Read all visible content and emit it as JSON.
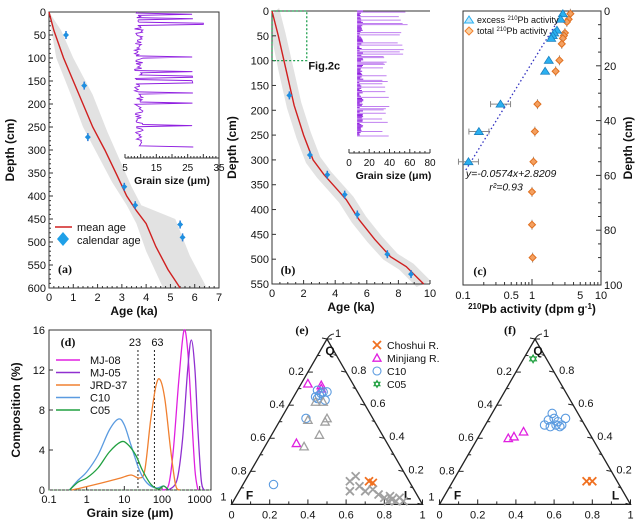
{
  "chart_data": [
    {
      "panel": "a",
      "type": "scatter",
      "panel_label": "(a)",
      "xlabel": "Age (ka)",
      "ylabel": "Depth (cm)",
      "xlim": [
        0,
        7
      ],
      "ylim": [
        600,
        0
      ],
      "xticks": [
        "0",
        "1",
        "2",
        "3",
        "4",
        "5",
        "6",
        "7"
      ],
      "yticks": [
        "0",
        "50",
        "100",
        "150",
        "200",
        "250",
        "300",
        "350",
        "400",
        "450",
        "500",
        "550",
        "600"
      ],
      "calendar_age": [
        [
          0.7,
          50
        ],
        [
          1.45,
          160
        ],
        [
          1.6,
          272
        ],
        [
          3.1,
          380
        ],
        [
          3.55,
          420
        ],
        [
          5.4,
          462
        ],
        [
          5.5,
          490
        ]
      ],
      "mean_age": [
        [
          0,
          0
        ],
        [
          0.2,
          40
        ],
        [
          0.6,
          100
        ],
        [
          1.2,
          175
        ],
        [
          1.8,
          250
        ],
        [
          2.3,
          300
        ],
        [
          2.8,
          355
        ],
        [
          3.2,
          400
        ],
        [
          3.6,
          432
        ],
        [
          4.0,
          460
        ],
        [
          4.4,
          510
        ],
        [
          4.9,
          560
        ],
        [
          5.4,
          600
        ]
      ],
      "envelope_upper": [
        [
          0,
          0
        ],
        [
          0.5,
          40
        ],
        [
          1.0,
          100
        ],
        [
          1.8,
          180
        ],
        [
          2.4,
          260
        ],
        [
          2.9,
          320
        ],
        [
          3.4,
          380
        ],
        [
          3.8,
          420
        ],
        [
          5.2,
          450
        ],
        [
          5.8,
          530
        ],
        [
          6.5,
          600
        ]
      ],
      "envelope_lower": [
        [
          0,
          0
        ],
        [
          0.1,
          40
        ],
        [
          0.3,
          100
        ],
        [
          0.9,
          180
        ],
        [
          1.4,
          250
        ],
        [
          2.0,
          310
        ],
        [
          2.6,
          370
        ],
        [
          3.2,
          420
        ],
        [
          3.6,
          460
        ],
        [
          4.0,
          520
        ],
        [
          4.7,
          600
        ]
      ],
      "legend": [
        "mean age",
        "calendar age"
      ],
      "inset": {
        "xlabel": "Grain size (μm)",
        "xticks": [
          "5",
          "15",
          "25",
          "35"
        ],
        "xlim": [
          5,
          35
        ],
        "depth_range": [
          0,
          290
        ]
      }
    },
    {
      "panel": "b",
      "type": "scatter",
      "panel_label": "(b)",
      "xlabel": "Age (ka)",
      "ylabel": "Depth (cm)",
      "xlim": [
        0,
        10
      ],
      "ylim": [
        550,
        0
      ],
      "xticks": [
        "0",
        "2",
        "4",
        "6",
        "8",
        "10"
      ],
      "yticks": [
        "0",
        "50",
        "100",
        "150",
        "200",
        "250",
        "300",
        "350",
        "400",
        "450",
        "500",
        "550"
      ],
      "calendar_age": [
        [
          1.1,
          170
        ],
        [
          2.4,
          290
        ],
        [
          3.5,
          330
        ],
        [
          4.6,
          370
        ],
        [
          5.4,
          410
        ],
        [
          7.3,
          490
        ],
        [
          8.8,
          530
        ]
      ],
      "mean_age": [
        [
          0,
          0
        ],
        [
          0.4,
          50
        ],
        [
          0.9,
          120
        ],
        [
          1.4,
          190
        ],
        [
          2.0,
          250
        ],
        [
          2.6,
          300
        ],
        [
          3.3,
          330
        ],
        [
          4.0,
          355
        ],
        [
          4.7,
          380
        ],
        [
          5.5,
          420
        ],
        [
          6.5,
          460
        ],
        [
          7.5,
          495
        ],
        [
          8.5,
          515
        ],
        [
          9.6,
          550
        ]
      ],
      "annotation": "Fig.2c",
      "annotation_box": {
        "age": [
          0,
          2.2
        ],
        "depth": [
          0,
          100
        ]
      },
      "inset": {
        "xlabel": "Grain size (μm)",
        "xticks": [
          "0",
          "20",
          "40",
          "60",
          "80"
        ],
        "xlim": [
          0,
          80
        ],
        "depth_range": [
          0,
          250
        ]
      }
    },
    {
      "panel": "c",
      "type": "scatter",
      "panel_label": "(c)",
      "xlabel": "210Pb activity (dpm g-1)",
      "ylabel": "Depth (cm)",
      "xscale": "log",
      "xlim": [
        0.1,
        10
      ],
      "ylim": [
        100,
        0
      ],
      "xticks": [
        "0.1",
        "0.5",
        "1",
        "5",
        "10"
      ],
      "yticks": [
        "0",
        "20",
        "40",
        "60",
        "80",
        "100"
      ],
      "series": [
        {
          "name": "excess 210Pb activity",
          "points": [
            [
              2.8,
              1
            ],
            [
              2.6,
              3
            ],
            [
              2.3,
              7
            ],
            [
              2.1,
              8
            ],
            [
              2.0,
              9
            ],
            [
              1.9,
              10
            ],
            [
              1.75,
              18
            ],
            [
              1.55,
              22
            ],
            [
              0.35,
              34
            ],
            [
              0.17,
              44
            ],
            [
              0.12,
              55
            ]
          ]
        },
        {
          "name": "total 210Pb activity",
          "points": [
            [
              3.6,
              1
            ],
            [
              3.4,
              3
            ],
            [
              3.2,
              4
            ],
            [
              3.0,
              8
            ],
            [
              2.9,
              9
            ],
            [
              2.8,
              10
            ],
            [
              2.7,
              12
            ],
            [
              2.5,
              18
            ],
            [
              2.2,
              22
            ],
            [
              1.2,
              34
            ],
            [
              1.1,
              44
            ],
            [
              1.05,
              55
            ],
            [
              1.0,
              66
            ],
            [
              1.0,
              78
            ],
            [
              1.02,
              90
            ]
          ]
        }
      ],
      "fit_equation": "y=-0.0574x+2.8209",
      "r2": "r²=0.93",
      "legend": [
        "excess 210Pb activity",
        "total 210Pb activity"
      ]
    },
    {
      "panel": "d",
      "type": "line",
      "panel_label": "(d)",
      "xlabel": "Grain size (μm)",
      "ylabel": "Composition (%)",
      "xscale": "log",
      "xlim": [
        0.1,
        2000
      ],
      "ylim": [
        0,
        16
      ],
      "xticks": [
        "0.1",
        "1",
        "10",
        "100",
        "1000"
      ],
      "yticks": [
        "0",
        "4",
        "8",
        "12",
        "16"
      ],
      "reference_lines": [
        {
          "x": 23,
          "label": "23"
        },
        {
          "x": 63,
          "label": "63"
        }
      ],
      "series": [
        {
          "name": "MJ-08",
          "color": "#e020e0",
          "points": [
            [
              100,
              0
            ],
            [
              150,
              0.5
            ],
            [
              200,
              4
            ],
            [
              280,
              11
            ],
            [
              380,
              15.9
            ],
            [
              480,
              14
            ],
            [
              600,
              8
            ],
            [
              750,
              2
            ],
            [
              900,
              0
            ]
          ]
        },
        {
          "name": "MJ-05",
          "color": "#9030d0",
          "points": [
            [
              150,
              0
            ],
            [
              250,
              1
            ],
            [
              350,
              5
            ],
            [
              480,
              12
            ],
            [
              600,
              15
            ],
            [
              750,
              12
            ],
            [
              900,
              6
            ],
            [
              1100,
              1
            ],
            [
              1300,
              0
            ]
          ]
        },
        {
          "name": "JRD-37",
          "color": "#f08030",
          "points": [
            [
              0.4,
              0
            ],
            [
              0.7,
              0.2
            ],
            [
              1.5,
              0.5
            ],
            [
              4,
              0.9
            ],
            [
              8,
              1.2
            ],
            [
              15,
              1.5
            ],
            [
              25,
              1.2
            ],
            [
              35,
              2
            ],
            [
              50,
              7
            ],
            [
              70,
              10.5
            ],
            [
              90,
              11
            ],
            [
              120,
              9
            ],
            [
              170,
              4
            ],
            [
              230,
              0.5
            ],
            [
              300,
              0
            ]
          ]
        },
        {
          "name": "C10",
          "color": "#5b9be0",
          "points": [
            [
              0.35,
              0
            ],
            [
              0.6,
              1
            ],
            [
              1,
              1.8
            ],
            [
              2,
              3.5
            ],
            [
              4,
              6
            ],
            [
              7,
              7.1
            ],
            [
              10,
              6.5
            ],
            [
              15,
              4.5
            ],
            [
              25,
              2
            ],
            [
              40,
              0.7
            ],
            [
              70,
              0.2
            ],
            [
              110,
              0.4
            ],
            [
              150,
              0
            ]
          ]
        },
        {
          "name": "C05",
          "color": "#20a040",
          "points": [
            [
              0.35,
              0
            ],
            [
              0.6,
              0.8
            ],
            [
              1,
              1.2
            ],
            [
              2,
              2.2
            ],
            [
              4,
              3.8
            ],
            [
              8,
              4.8
            ],
            [
              12,
              4.6
            ],
            [
              20,
              3.5
            ],
            [
              30,
              2
            ],
            [
              50,
              0.6
            ],
            [
              80,
              0.1
            ],
            [
              110,
              0.4
            ],
            [
              150,
              0
            ]
          ]
        }
      ]
    },
    {
      "panel": "e",
      "type": "scatter",
      "subtype": "ternary",
      "panel_label": "(e)",
      "vertices": {
        "top": "Q",
        "left": "F",
        "right": "L"
      },
      "ticks": [
        "0",
        "0.2",
        "0.4",
        "0.6",
        "0.8",
        "1"
      ],
      "legend": [
        "Choshui R.",
        "Minjiang R.",
        "C10",
        "C05"
      ],
      "series": [
        {
          "name": "Choshui R.",
          "marker": "x",
          "color": "#f07020",
          "points": [
            [
              0.72,
              0.14
            ],
            [
              0.74,
              0.13
            ]
          ]
        },
        {
          "name": "Minjiang R.",
          "marker": "triangle",
          "color": "#e020e0",
          "points": [
            [
              0.4,
              0.73
            ],
            [
              0.47,
              0.72
            ],
            [
              0.47,
              0.7
            ],
            [
              0.34,
              0.37
            ]
          ]
        },
        {
          "name": "C10",
          "marker": "circle",
          "color": "#5b9be0",
          "points": [
            [
              0.45,
              0.69
            ],
            [
              0.47,
              0.67
            ],
            [
              0.48,
              0.68
            ],
            [
              0.46,
              0.66
            ],
            [
              0.44,
              0.65
            ],
            [
              0.45,
              0.64
            ],
            [
              0.5,
              0.68
            ],
            [
              0.49,
              0.63
            ],
            [
              0.39,
              0.52
            ],
            [
              0.22,
              0.12
            ]
          ]
        },
        {
          "name": "gray-triangles",
          "marker": "triangle",
          "color": "#a0a0a0",
          "points": [
            [
              0.4,
              0.51
            ],
            [
              0.5,
              0.52
            ],
            [
              0.49,
              0.5
            ],
            [
              0.46,
              0.42
            ],
            [
              0.38,
              0.35
            ],
            [
              0.44,
              0.62
            ],
            [
              0.48,
              0.62
            ]
          ]
        },
        {
          "name": "gray-crosses",
          "marker": "x",
          "color": "#a0a0a0",
          "points": [
            [
              0.62,
              0.14
            ],
            [
              0.65,
              0.17
            ],
            [
              0.67,
              0.11
            ],
            [
              0.62,
              0.08
            ],
            [
              0.7,
              0.08
            ],
            [
              0.74,
              0.09
            ],
            [
              0.77,
              0.06
            ],
            [
              0.8,
              0.04
            ],
            [
              0.83,
              0.05
            ],
            [
              0.84,
              0.03
            ],
            [
              0.86,
              0.02
            ],
            [
              0.88,
              0.04
            ],
            [
              0.9,
              0.02
            ],
            [
              0.82,
              0.02
            ]
          ]
        }
      ]
    },
    {
      "panel": "f",
      "type": "scatter",
      "subtype": "ternary",
      "panel_label": "(f)",
      "vertices": {
        "top": "Q",
        "left": "F",
        "right": "L"
      },
      "ticks": [
        "0",
        "0.2",
        "0.4",
        "0.6",
        "0.8",
        "1"
      ],
      "series": [
        {
          "name": "Choshui R.",
          "marker": "x",
          "color": "#f07020",
          "points": [
            [
              0.77,
              0.14
            ],
            [
              0.8,
              0.14
            ]
          ]
        },
        {
          "name": "Minjiang R.",
          "marker": "triangle",
          "color": "#e020e0",
          "points": [
            [
              0.36,
              0.4
            ],
            [
              0.39,
              0.41
            ],
            [
              0.44,
              0.44
            ]
          ]
        },
        {
          "name": "C10",
          "marker": "circle",
          "color": "#5b9be0",
          "points": [
            [
              0.59,
              0.55
            ],
            [
              0.57,
              0.51
            ],
            [
              0.6,
              0.52
            ],
            [
              0.62,
              0.5
            ],
            [
              0.55,
              0.48
            ],
            [
              0.58,
              0.47
            ],
            [
              0.61,
              0.48
            ],
            [
              0.64,
              0.48
            ],
            [
              0.66,
              0.52
            ],
            [
              0.63,
              0.47
            ]
          ]
        },
        {
          "name": "C05",
          "marker": "star",
          "color": "#20a040",
          "points": [
            [
              0.49,
              0.88
            ]
          ]
        }
      ]
    }
  ]
}
